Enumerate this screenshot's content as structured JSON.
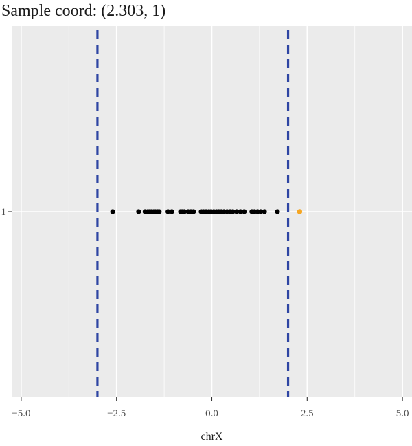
{
  "chart_data": {
    "type": "scatter",
    "title": "Sample coord: (2.303, 1)",
    "xlabel": "chrX",
    "ylabel": "",
    "xlim": [
      -5.25,
      5.25
    ],
    "ylim": [
      0.4,
      1.6
    ],
    "x_ticks": [
      -5.0,
      -2.5,
      0.0,
      2.5,
      5.0
    ],
    "x_tick_labels": [
      "−5.0",
      "−2.5",
      "0.0",
      "2.5",
      "5.0"
    ],
    "y_ticks": [
      1
    ],
    "y_tick_labels": [
      "1"
    ],
    "grid": true,
    "points": {
      "x": [
        -2.6,
        -1.92,
        -1.75,
        -1.68,
        -1.63,
        -1.58,
        -1.52,
        -1.48,
        -1.42,
        -1.38,
        -1.15,
        -1.05,
        -0.82,
        -0.78,
        -0.72,
        -0.62,
        -0.55,
        -0.48,
        -0.28,
        -0.22,
        -0.15,
        -0.08,
        -0.02,
        0.05,
        0.12,
        0.18,
        0.25,
        0.32,
        0.4,
        0.48,
        0.55,
        0.65,
        0.75,
        0.85,
        1.05,
        1.12,
        1.2,
        1.28,
        1.38,
        1.72
      ],
      "y": [
        1,
        1,
        1,
        1,
        1,
        1,
        1,
        1,
        1,
        1,
        1,
        1,
        1,
        1,
        1,
        1,
        1,
        1,
        1,
        1,
        1,
        1,
        1,
        1,
        1,
        1,
        1,
        1,
        1,
        1,
        1,
        1,
        1,
        1,
        1,
        1,
        1,
        1,
        1,
        1
      ],
      "color": "#000000"
    },
    "highlight_point": {
      "x": 2.303,
      "y": 1,
      "color": "#f5a623"
    },
    "vlines": [
      {
        "x": -3.0,
        "color": "#2e45a3",
        "style": "dashed"
      },
      {
        "x": 2.0,
        "color": "#2e45a3",
        "style": "dashed"
      }
    ],
    "colors": {
      "panel_background": "#ebebeb",
      "grid": "#ffffff"
    }
  }
}
